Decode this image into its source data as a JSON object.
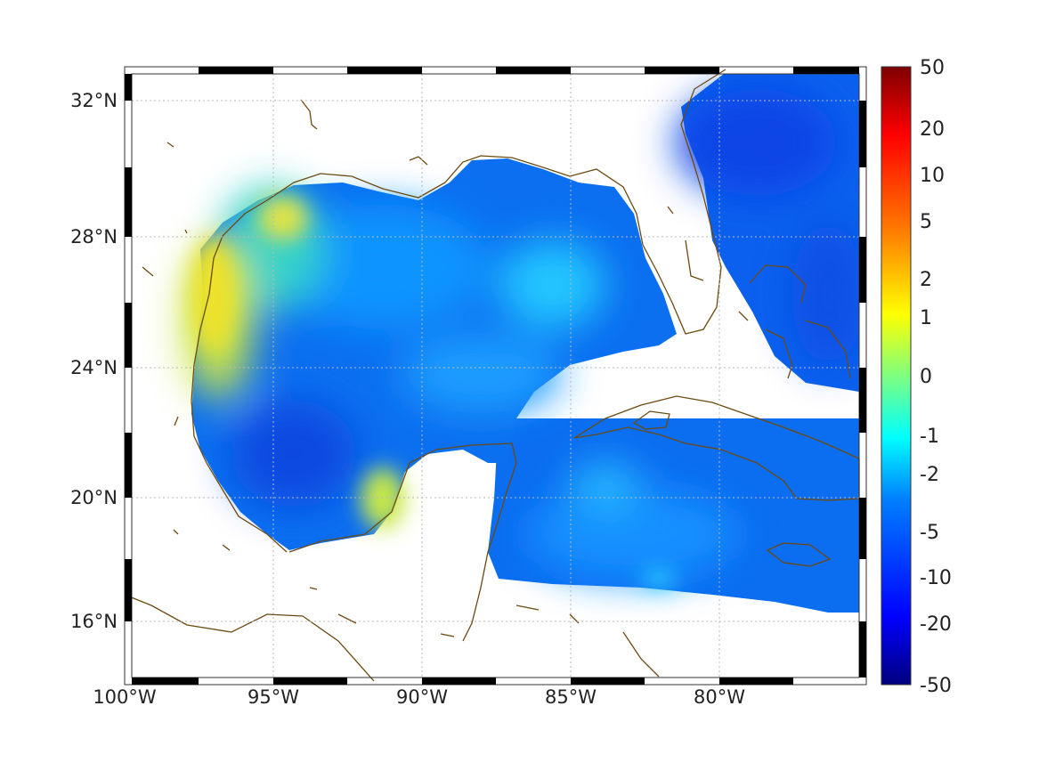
{
  "map": {
    "region": "Gulf of Mexico and Caribbean",
    "lon_range": [
      -100,
      -75
    ],
    "lat_range": [
      14.2,
      32.9
    ],
    "x_tick_labels": [
      "100°W",
      "95°W",
      "90°W",
      "85°W",
      "80°W"
    ],
    "y_tick_labels": [
      "32°N",
      "28°N",
      "24°N",
      "20°N",
      "16°N"
    ],
    "grid": "dotted",
    "frame": "black-white dashed border",
    "coastline_color": "#6b4a12"
  },
  "colorbar": {
    "labels": [
      "50",
      "20",
      "10",
      "5",
      "2",
      "1",
      "0",
      "-1",
      "-2",
      "-5",
      "-10",
      "-20",
      "-50"
    ],
    "colormap": "jet",
    "colors": [
      "#00007f",
      "#0000ff",
      "#007fff",
      "#00ffff",
      "#7fff7f",
      "#ffff00",
      "#ff7f00",
      "#ff0000",
      "#7f0000"
    ]
  },
  "field_colors": {
    "background": "#0b6df0",
    "deep": "#0a50e8",
    "cyan_patch": "#1fb4ff",
    "warm_patch": "#e6e62a"
  }
}
